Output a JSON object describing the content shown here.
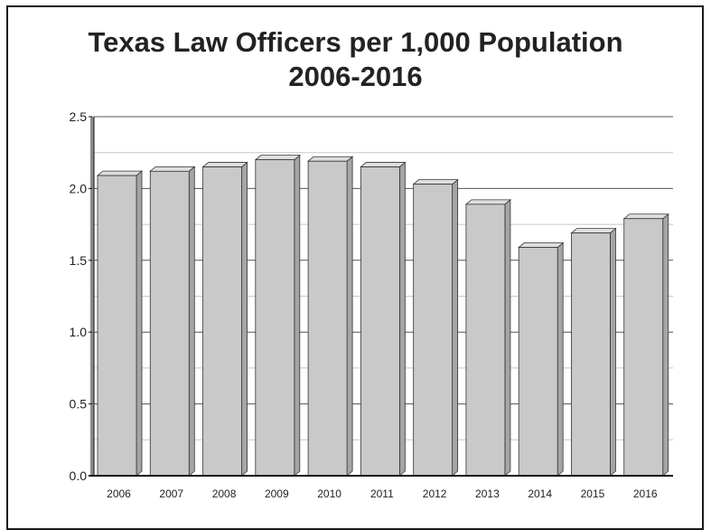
{
  "chart_data": {
    "type": "bar",
    "title_lines": [
      "Texas Law Officers per 1,000 Population",
      "2006-2016"
    ],
    "categories": [
      "2006",
      "2007",
      "2008",
      "2009",
      "2010",
      "2011",
      "2012",
      "2013",
      "2014",
      "2015",
      "2016"
    ],
    "values": [
      2.09,
      2.12,
      2.15,
      2.2,
      2.19,
      2.15,
      2.03,
      1.89,
      1.59,
      1.69,
      1.79
    ],
    "ylim": [
      0,
      2.5
    ],
    "y_ticks": [
      "0.0",
      "0.5",
      "1.0",
      "1.5",
      "2.0",
      "2.5"
    ],
    "grid": true,
    "xlabel": "",
    "ylabel": "",
    "colors": {
      "bar_front": "#c9c9c9",
      "bar_side": "#a5a5a5",
      "bar_top": "#dedede",
      "bar_edge": "#333333",
      "grid_major": "#555555",
      "grid_minor": "#c8c8c8",
      "axis": "#111111",
      "wall": "#8a8a8a"
    }
  }
}
